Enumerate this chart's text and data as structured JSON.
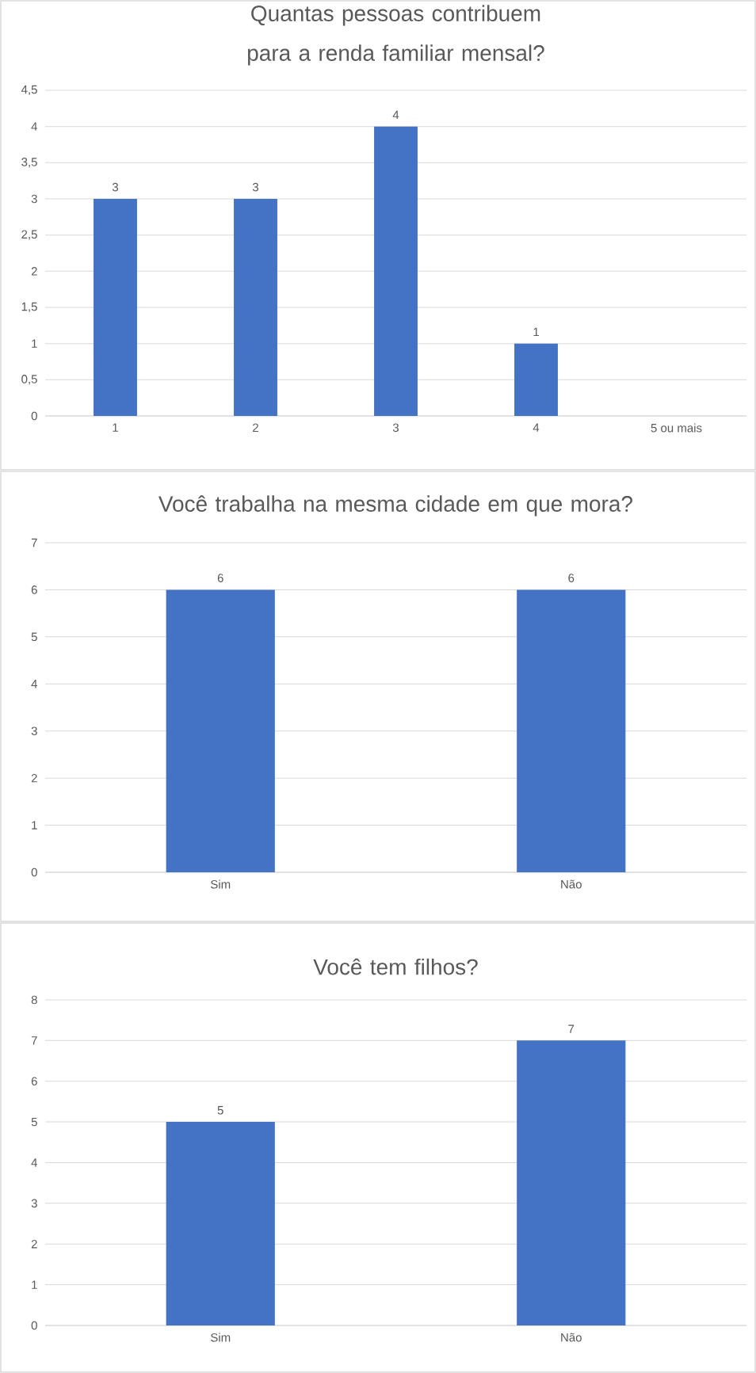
{
  "chart_data": [
    {
      "type": "bar",
      "title": "Quantas pessoas contribuem para a renda familiar mensal?",
      "categories": [
        "1",
        "2",
        "3",
        "4",
        "5 ou mais"
      ],
      "values": [
        3,
        3,
        4,
        1,
        null
      ],
      "color": "#4472c4",
      "ylim": [
        0,
        4.5
      ],
      "yticks": [
        0,
        {
          "value": 0.5,
          "label": "0,5"
        },
        1,
        {
          "value": 1.5,
          "label": "1,5"
        },
        2,
        {
          "value": 2.5,
          "label": "2,5"
        },
        3,
        {
          "value": 3.5,
          "label": "3,5"
        },
        4,
        {
          "value": 4.5,
          "label": "4,5"
        }
      ],
      "grid": "y",
      "data_labels": true
    },
    {
      "type": "bar",
      "title": "Você trabalha na mesma cidade em que mora?",
      "categories": [
        "Sim",
        "Não"
      ],
      "values": [
        6,
        6
      ],
      "color": "#4472c4",
      "ylim": [
        0,
        7
      ],
      "yticks": [
        0,
        1,
        2,
        3,
        4,
        5,
        6,
        7
      ],
      "grid": "y",
      "data_labels": true
    },
    {
      "type": "bar",
      "title": "Você tem filhos?",
      "categories": [
        "Sim",
        "Não"
      ],
      "values": [
        5,
        7
      ],
      "color": "#4472c4",
      "ylim": [
        0,
        8
      ],
      "yticks": [
        0,
        1,
        2,
        3,
        4,
        5,
        6,
        7,
        8
      ],
      "grid": "y",
      "data_labels": true
    }
  ]
}
